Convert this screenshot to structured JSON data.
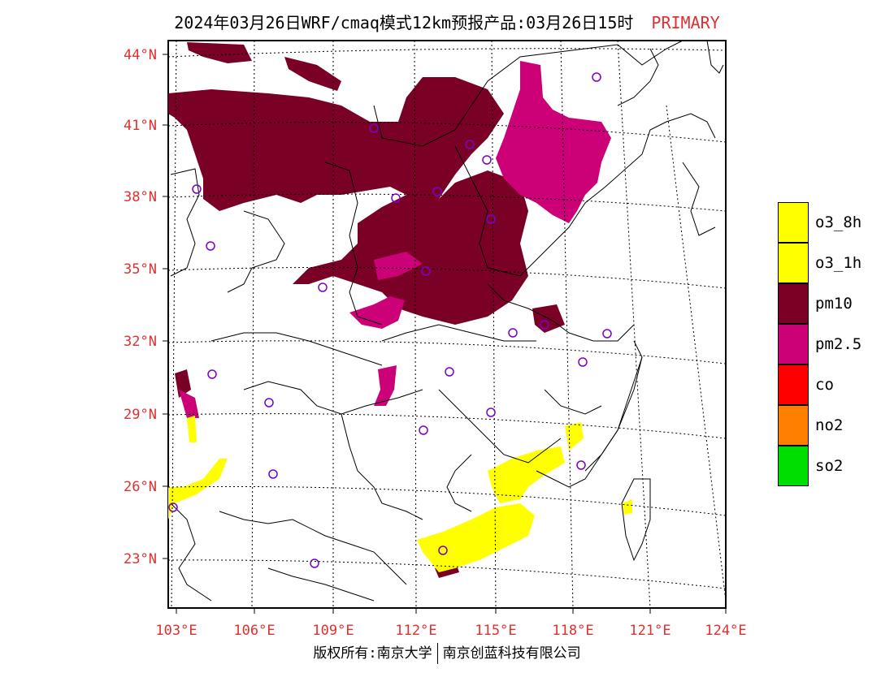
{
  "title": {
    "main": "2024年03月26日WRF/cmaq模式12km预报产品:03月26日15时",
    "tag": "PRIMARY"
  },
  "axes": {
    "lat_labels": [
      "44°N",
      "41°N",
      "38°N",
      "35°N",
      "32°N",
      "29°N",
      "26°N",
      "23°N"
    ],
    "lon_labels": [
      "103°E",
      "106°E",
      "109°E",
      "112°E",
      "115°E",
      "118°E",
      "121°E",
      "124°E"
    ]
  },
  "legend": [
    {
      "label": "o3_8h",
      "color": "#ffff00"
    },
    {
      "label": "o3_1h",
      "color": "#ffff00"
    },
    {
      "label": "pm10",
      "color": "#7a0026"
    },
    {
      "label": "pm2.5",
      "color": "#cc0077"
    },
    {
      "label": "co",
      "color": "#ff0000"
    },
    {
      "label": "no2",
      "color": "#ff8000"
    },
    {
      "label": "so2",
      "color": "#00dd00"
    }
  ],
  "footer": {
    "left": "版权所有:南京大学",
    "right": "南京创蓝科技有限公司"
  }
}
